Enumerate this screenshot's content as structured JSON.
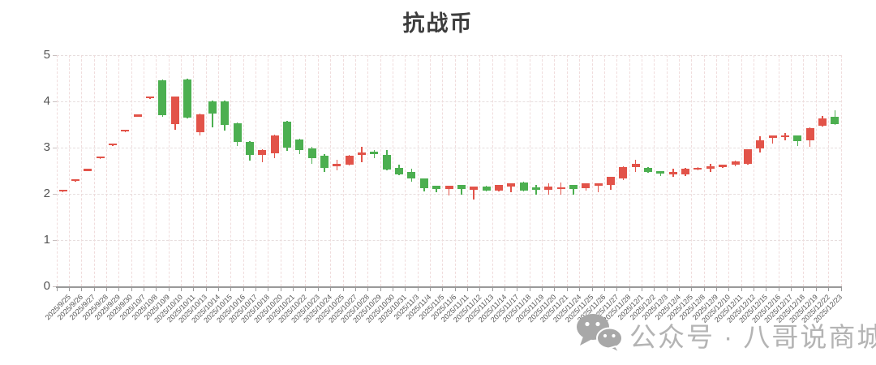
{
  "title": "抗战币",
  "watermark": {
    "icon": "wechat-icon",
    "text": "公众号 · 八哥说商城"
  },
  "y_axis_tick_labels": [
    "0",
    "1",
    "2",
    "3",
    "4",
    "5"
  ],
  "chart_data": {
    "type": "candlestick",
    "title": "抗战币",
    "xlabel": "",
    "ylabel": "",
    "ylim": [
      0,
      5
    ],
    "yticks": [
      0,
      1,
      2,
      3,
      4,
      5
    ],
    "grid": true,
    "up_color": "#e25349",
    "down_color": "#4caf50",
    "convention": "red=up, green=down",
    "categories": [
      "2025/9/25",
      "2025/9/26",
      "2025/9/27",
      "2025/9/28",
      "2025/9/29",
      "2025/9/30",
      "2025/10/7",
      "2025/10/8",
      "2025/10/9",
      "2025/10/10",
      "2025/10/11",
      "2025/10/13",
      "2025/10/14",
      "2025/10/15",
      "2025/10/16",
      "2025/10/17",
      "2025/10/18",
      "2025/10/20",
      "2025/10/21",
      "2025/10/22",
      "2025/10/23",
      "2025/10/24",
      "2025/10/25",
      "2025/10/27",
      "2025/10/28",
      "2025/10/29",
      "2025/10/30",
      "2025/10/31",
      "2025/11/3",
      "2025/11/4",
      "2025/11/5",
      "2025/11/6",
      "2025/11/11",
      "2025/11/12",
      "2025/11/13",
      "2025/11/14",
      "2025/11/17",
      "2025/11/18",
      "2025/11/19",
      "2025/11/20",
      "2025/11/21",
      "2025/11/24",
      "2025/11/25",
      "2025/11/26",
      "2025/11/27",
      "2025/11/28",
      "2025/12/1",
      "2025/12/2",
      "2025/12/3",
      "2025/12/4",
      "2025/12/5",
      "2025/12/8",
      "2025/12/9",
      "2025/12/10",
      "2025/12/11",
      "2025/12/12",
      "2025/12/15",
      "2025/12/16",
      "2025/12/17",
      "2025/12/18",
      "2025/12/19",
      "2025/12/22",
      "2025/12/23"
    ],
    "ohlc": [
      [
        2.05,
        2.06,
        2.04,
        2.05
      ],
      [
        2.28,
        2.29,
        2.27,
        2.28
      ],
      [
        2.5,
        2.51,
        2.49,
        2.5
      ],
      [
        2.77,
        2.78,
        2.76,
        2.77
      ],
      [
        3.05,
        3.06,
        3.04,
        3.05
      ],
      [
        3.35,
        3.36,
        3.34,
        3.35
      ],
      [
        3.67,
        3.68,
        3.66,
        3.67
      ],
      [
        4.07,
        4.08,
        4.06,
        4.07
      ],
      [
        4.45,
        4.47,
        3.66,
        3.7
      ],
      [
        3.5,
        4.1,
        3.38,
        4.1
      ],
      [
        4.48,
        4.5,
        3.63,
        3.65
      ],
      [
        3.33,
        3.74,
        3.27,
        3.72
      ],
      [
        4.0,
        4.02,
        3.44,
        3.73
      ],
      [
        4.0,
        4.02,
        3.36,
        3.5
      ],
      [
        3.52,
        3.55,
        3.03,
        3.12
      ],
      [
        3.12,
        3.14,
        2.72,
        2.84
      ],
      [
        2.84,
        2.97,
        2.69,
        2.95
      ],
      [
        2.87,
        3.28,
        2.77,
        3.27
      ],
      [
        3.56,
        3.58,
        2.93,
        3.0
      ],
      [
        3.17,
        3.19,
        2.86,
        2.95
      ],
      [
        2.99,
        3.01,
        2.65,
        2.78
      ],
      [
        2.83,
        2.86,
        2.48,
        2.56
      ],
      [
        2.59,
        2.73,
        2.5,
        2.65
      ],
      [
        2.63,
        2.84,
        2.61,
        2.82
      ],
      [
        2.85,
        3.01,
        2.69,
        2.89
      ],
      [
        2.92,
        2.94,
        2.77,
        2.86
      ],
      [
        2.84,
        2.95,
        2.5,
        2.52
      ],
      [
        2.57,
        2.63,
        2.4,
        2.42
      ],
      [
        2.48,
        2.54,
        2.27,
        2.33
      ],
      [
        2.33,
        2.34,
        2.06,
        2.13
      ],
      [
        2.17,
        2.18,
        2.03,
        2.1
      ],
      [
        2.11,
        2.18,
        1.97,
        2.17
      ],
      [
        2.19,
        2.2,
        1.98,
        2.1
      ],
      [
        2.09,
        2.16,
        1.88,
        2.15
      ],
      [
        2.16,
        2.17,
        2.05,
        2.07
      ],
      [
        2.07,
        2.2,
        2.06,
        2.19
      ],
      [
        2.16,
        2.23,
        2.04,
        2.22
      ],
      [
        2.25,
        2.26,
        2.06,
        2.07
      ],
      [
        2.12,
        2.19,
        1.99,
        2.09
      ],
      [
        2.09,
        2.22,
        1.99,
        2.15
      ],
      [
        2.1,
        2.25,
        1.98,
        2.14
      ],
      [
        2.19,
        2.2,
        1.98,
        2.1
      ],
      [
        2.13,
        2.23,
        2.07,
        2.22
      ],
      [
        2.18,
        2.23,
        2.04,
        2.22
      ],
      [
        2.19,
        2.37,
        2.08,
        2.36
      ],
      [
        2.33,
        2.6,
        2.3,
        2.58
      ],
      [
        2.57,
        2.74,
        2.48,
        2.65
      ],
      [
        2.57,
        2.58,
        2.46,
        2.48
      ],
      [
        2.48,
        2.49,
        2.39,
        2.44
      ],
      [
        2.42,
        2.54,
        2.36,
        2.48
      ],
      [
        2.42,
        2.57,
        2.39,
        2.54
      ],
      [
        2.52,
        2.58,
        2.51,
        2.57
      ],
      [
        2.54,
        2.65,
        2.48,
        2.6
      ],
      [
        2.58,
        2.64,
        2.57,
        2.63
      ],
      [
        2.63,
        2.72,
        2.6,
        2.71
      ],
      [
        2.65,
        2.97,
        2.63,
        2.96
      ],
      [
        2.98,
        3.24,
        2.89,
        3.15
      ],
      [
        3.21,
        3.27,
        3.09,
        3.26
      ],
      [
        3.22,
        3.32,
        3.16,
        3.27
      ],
      [
        3.26,
        3.27,
        3.04,
        3.14
      ],
      [
        3.15,
        3.43,
        3.02,
        3.42
      ],
      [
        3.47,
        3.69,
        3.45,
        3.63
      ],
      [
        3.67,
        3.81,
        3.49,
        3.5
      ]
    ]
  }
}
